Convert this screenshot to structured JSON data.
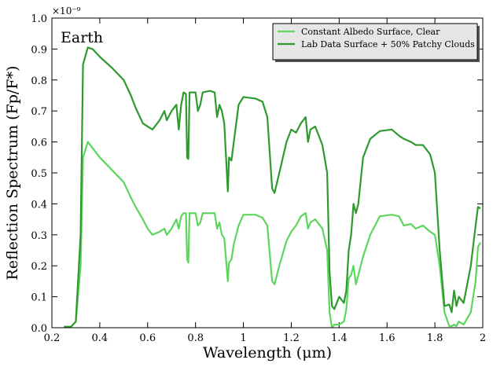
{
  "chart_data": {
    "type": "line",
    "y_offset_label": "×10⁻⁹",
    "annotation": "Earth",
    "xlabel": "Wavelength (μm)",
    "ylabel": "Reflection Spectrum (Fp/F*)",
    "x": [
      0.25,
      0.28,
      0.3,
      0.32,
      0.33,
      0.35,
      0.37,
      0.4,
      0.45,
      0.5,
      0.53,
      0.55,
      0.58,
      0.6,
      0.62,
      0.65,
      0.67,
      0.68,
      0.7,
      0.72,
      0.73,
      0.74,
      0.75,
      0.76,
      0.765,
      0.77,
      0.775,
      0.8,
      0.81,
      0.82,
      0.83,
      0.86,
      0.88,
      0.89,
      0.9,
      0.91,
      0.92,
      0.935,
      0.94,
      0.95,
      0.96,
      0.98,
      1.0,
      1.05,
      1.08,
      1.1,
      1.12,
      1.13,
      1.15,
      1.18,
      1.2,
      1.22,
      1.24,
      1.26,
      1.27,
      1.28,
      1.3,
      1.33,
      1.35,
      1.36,
      1.37,
      1.38,
      1.4,
      1.42,
      1.43,
      1.44,
      1.45,
      1.46,
      1.47,
      1.48,
      1.5,
      1.53,
      1.57,
      1.62,
      1.65,
      1.67,
      1.7,
      1.72,
      1.75,
      1.78,
      1.8,
      1.82,
      1.84,
      1.86,
      1.87,
      1.88,
      1.89,
      1.9,
      1.92,
      1.95,
      1.97,
      1.98,
      1.99
    ],
    "series": [
      {
        "name": "Constant Albedo Surface, Clear",
        "color": "#5cd65c",
        "values": [
          0.003,
          0.003,
          0.02,
          0.2,
          0.55,
          0.6,
          0.58,
          0.55,
          0.51,
          0.47,
          0.42,
          0.39,
          0.35,
          0.32,
          0.3,
          0.31,
          0.32,
          0.3,
          0.32,
          0.35,
          0.32,
          0.36,
          0.37,
          0.37,
          0.22,
          0.21,
          0.37,
          0.37,
          0.33,
          0.34,
          0.37,
          0.37,
          0.37,
          0.32,
          0.34,
          0.3,
          0.29,
          0.15,
          0.21,
          0.22,
          0.27,
          0.33,
          0.365,
          0.365,
          0.355,
          0.33,
          0.15,
          0.14,
          0.2,
          0.28,
          0.31,
          0.33,
          0.36,
          0.37,
          0.32,
          0.34,
          0.35,
          0.32,
          0.25,
          0.05,
          0.0,
          0.01,
          0.01,
          0.02,
          0.06,
          0.16,
          0.17,
          0.2,
          0.14,
          0.17,
          0.23,
          0.3,
          0.36,
          0.365,
          0.36,
          0.33,
          0.335,
          0.32,
          0.33,
          0.31,
          0.3,
          0.2,
          0.05,
          0.005,
          0.005,
          0.01,
          0.005,
          0.02,
          0.01,
          0.05,
          0.15,
          0.26,
          0.275
        ]
      },
      {
        "name": "Lab Data Surface + 50% Patchy Clouds",
        "color": "#2e9a2e",
        "values": [
          0.003,
          0.003,
          0.02,
          0.3,
          0.85,
          0.905,
          0.9,
          0.875,
          0.84,
          0.8,
          0.75,
          0.71,
          0.66,
          0.65,
          0.64,
          0.67,
          0.7,
          0.67,
          0.7,
          0.72,
          0.64,
          0.72,
          0.76,
          0.755,
          0.55,
          0.545,
          0.76,
          0.76,
          0.7,
          0.72,
          0.76,
          0.765,
          0.76,
          0.68,
          0.72,
          0.7,
          0.66,
          0.44,
          0.55,
          0.54,
          0.6,
          0.72,
          0.745,
          0.74,
          0.73,
          0.68,
          0.45,
          0.435,
          0.5,
          0.6,
          0.64,
          0.63,
          0.66,
          0.68,
          0.6,
          0.64,
          0.65,
          0.59,
          0.5,
          0.18,
          0.07,
          0.06,
          0.1,
          0.08,
          0.12,
          0.25,
          0.3,
          0.4,
          0.37,
          0.4,
          0.55,
          0.61,
          0.635,
          0.64,
          0.62,
          0.61,
          0.6,
          0.59,
          0.59,
          0.56,
          0.5,
          0.25,
          0.07,
          0.075,
          0.05,
          0.12,
          0.07,
          0.1,
          0.08,
          0.2,
          0.33,
          0.39,
          0.385
        ]
      }
    ],
    "xlim": [
      0.2,
      2.0
    ],
    "xticks": [
      0.2,
      0.4,
      0.6,
      0.8,
      1,
      1.2,
      1.4,
      1.6,
      1.8,
      2
    ],
    "ylim": [
      0,
      1.0
    ],
    "yticks": [
      {
        "value": 0,
        "label": "0.0"
      },
      0.1,
      0.2,
      0.3,
      0.4,
      0.5,
      0.6,
      0.7,
      0.8,
      0.9,
      {
        "value": 1.0,
        "label": "1.0"
      }
    ],
    "grid": false,
    "legend": "upper right"
  }
}
